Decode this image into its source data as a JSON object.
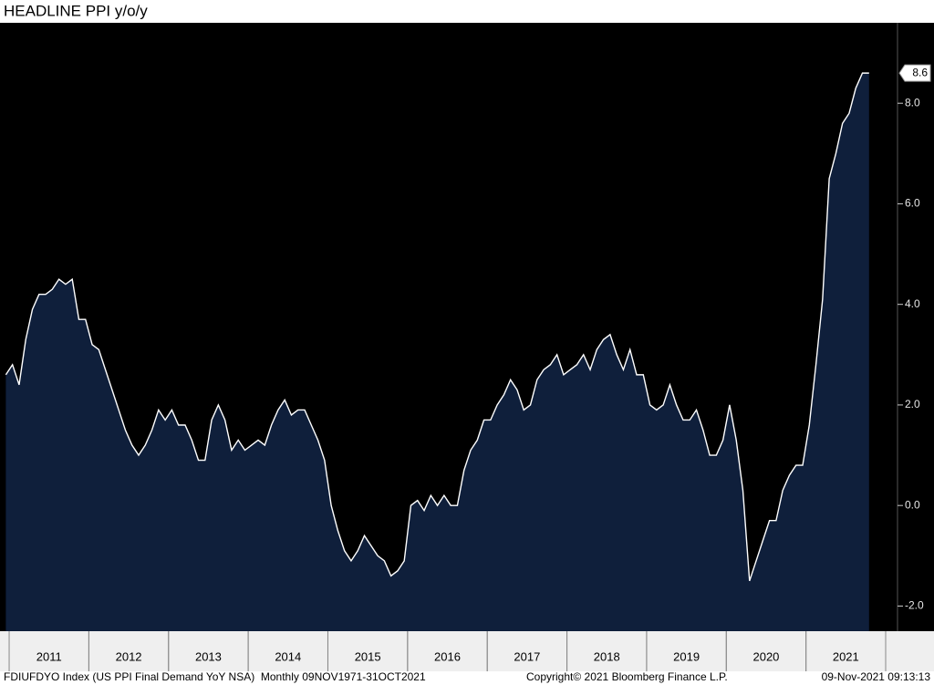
{
  "chart_data": {
    "type": "area",
    "title": "HEADLINE PPI y/o/y",
    "categories": [
      null,
      null,
      null,
      null,
      null,
      null,
      null,
      "2011",
      null,
      null,
      null,
      null,
      null,
      null,
      null,
      null,
      null,
      null,
      null,
      "2012",
      null,
      null,
      null,
      null,
      null,
      null,
      null,
      null,
      null,
      null,
      null,
      "2013",
      null,
      null,
      null,
      null,
      null,
      null,
      null,
      null,
      null,
      null,
      null,
      "2014",
      null,
      null,
      null,
      null,
      null,
      null,
      null,
      null,
      null,
      null,
      null,
      "2015",
      null,
      null,
      null,
      null,
      null,
      null,
      null,
      null,
      null,
      null,
      null,
      "2016",
      null,
      null,
      null,
      null,
      null,
      null,
      null,
      null,
      null,
      null,
      null,
      "2017",
      null,
      null,
      null,
      null,
      null,
      null,
      null,
      null,
      null,
      null,
      null,
      "2018",
      null,
      null,
      null,
      null,
      null,
      null,
      null,
      null,
      null,
      null,
      null,
      "2019",
      null,
      null,
      null,
      null,
      null,
      null,
      null,
      null,
      null,
      null,
      null,
      "2020",
      null,
      null,
      null,
      null,
      null,
      null,
      null,
      null,
      null,
      null,
      null,
      "2021",
      null,
      null,
      null
    ],
    "values": [
      2.6,
      2.8,
      2.4,
      3.3,
      3.9,
      4.2,
      4.2,
      4.3,
      4.5,
      4.4,
      4.5,
      3.7,
      3.7,
      3.2,
      3.1,
      2.7,
      2.3,
      1.9,
      1.5,
      1.2,
      1.0,
      1.2,
      1.5,
      1.9,
      1.7,
      1.9,
      1.6,
      1.6,
      1.3,
      0.9,
      0.9,
      1.7,
      2.0,
      1.7,
      1.1,
      1.3,
      1.1,
      1.2,
      1.3,
      1.2,
      1.6,
      1.9,
      2.1,
      1.8,
      1.9,
      1.9,
      1.6,
      1.3,
      0.9,
      0.0,
      -0.5,
      -0.9,
      -1.1,
      -0.9,
      -0.6,
      -0.8,
      -1.0,
      -1.1,
      -1.4,
      -1.3,
      -1.1,
      0.0,
      0.1,
      -0.1,
      0.2,
      0.0,
      0.2,
      0.0,
      0.0,
      0.7,
      1.1,
      1.3,
      1.7,
      1.7,
      2.0,
      2.2,
      2.5,
      2.3,
      1.9,
      2.0,
      2.5,
      2.7,
      2.8,
      3.0,
      2.6,
      2.7,
      2.8,
      3.0,
      2.7,
      3.1,
      3.3,
      3.4,
      3.0,
      2.7,
      3.1,
      2.6,
      2.6,
      2.0,
      1.9,
      2.0,
      2.4,
      2.0,
      1.7,
      1.7,
      1.9,
      1.5,
      1.0,
      1.0,
      1.3,
      2.0,
      1.3,
      0.3,
      -1.5,
      -1.1,
      -0.7,
      -0.3,
      -0.3,
      0.3,
      0.6,
      0.8,
      0.8,
      1.6,
      2.8,
      4.1,
      6.5,
      7.0,
      7.6,
      7.8,
      8.3,
      8.6,
      8.6
    ],
    "color": "#0f1f3b",
    "line_color": "#ffffff",
    "ylim": [
      -2.5,
      9.6
    ],
    "yticks": [
      {
        "value": -2,
        "label": "-2.0"
      },
      {
        "value": 0,
        "label": "0.0"
      },
      {
        "value": 2,
        "label": "2.0"
      },
      {
        "value": 4,
        "label": "4.0"
      },
      {
        "value": 6,
        "label": "6.0"
      },
      {
        "value": 8,
        "label": "8.0"
      }
    ],
    "footer_source": "FDIUFDYO Index (US PPI Final Demand YoY NSA)  Monthly 09NOV1971-31OCT2021",
    "footer_copyright": "Copyright© 2021 Bloomberg Finance L.P.",
    "footer_date": "09-Nov-2021 09:13:13"
  }
}
